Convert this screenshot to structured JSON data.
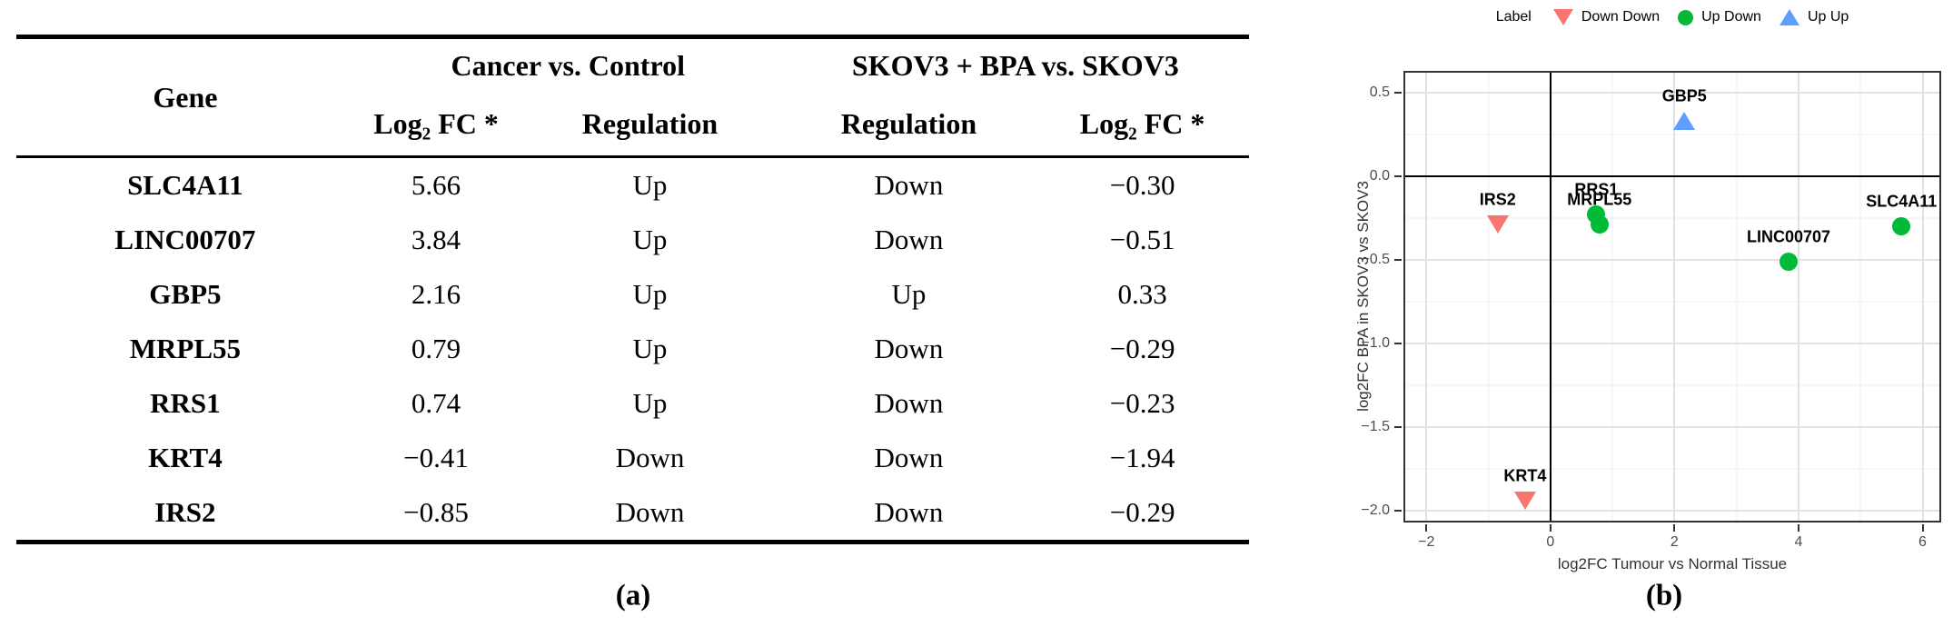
{
  "captions": {
    "a": "(a)",
    "b": "(b)"
  },
  "chart_data": [
    {
      "type": "table",
      "gene_header": "Gene",
      "column_groups": [
        "Cancer vs. Control",
        "SKOV3 + BPA vs. SKOV3"
      ],
      "columns": [
        "Gene",
        "Log₂ FC *",
        "Regulation",
        "Regulation",
        "Log₂ FC *"
      ],
      "rows": [
        {
          "gene": "SLC4A11",
          "cancer_log2fc": "5.66",
          "cancer_regulation": "Up",
          "bpa_regulation": "Down",
          "bpa_log2fc": "−0.30"
        },
        {
          "gene": "LINC00707",
          "cancer_log2fc": "3.84",
          "cancer_regulation": "Up",
          "bpa_regulation": "Down",
          "bpa_log2fc": "−0.51"
        },
        {
          "gene": "GBP5",
          "cancer_log2fc": "2.16",
          "cancer_regulation": "Up",
          "bpa_regulation": "Up",
          "bpa_log2fc": "0.33"
        },
        {
          "gene": "MRPL55",
          "cancer_log2fc": "0.79",
          "cancer_regulation": "Up",
          "bpa_regulation": "Down",
          "bpa_log2fc": "−0.29"
        },
        {
          "gene": "RRS1",
          "cancer_log2fc": "0.74",
          "cancer_regulation": "Up",
          "bpa_regulation": "Down",
          "bpa_log2fc": "−0.23"
        },
        {
          "gene": "KRT4",
          "cancer_log2fc": "−0.41",
          "cancer_regulation": "Down",
          "bpa_regulation": "Down",
          "bpa_log2fc": "−1.94"
        },
        {
          "gene": "IRS2",
          "cancer_log2fc": "−0.85",
          "cancer_regulation": "Down",
          "bpa_regulation": "Down",
          "bpa_log2fc": "−0.29"
        }
      ]
    },
    {
      "type": "scatter",
      "xlabel": "log2FC Tumour vs Normal Tissue",
      "ylabel": "log2FC BPA in SKOV3 vs SKOV3",
      "xlim": [
        -2.37,
        6.3
      ],
      "ylim": [
        -2.07,
        0.63
      ],
      "x_ticks": [
        {
          "v": -2,
          "label": "−2"
        },
        {
          "v": 0,
          "label": "0"
        },
        {
          "v": 2,
          "label": "2"
        },
        {
          "v": 4,
          "label": "4"
        },
        {
          "v": 6,
          "label": "6"
        }
      ],
      "y_ticks": [
        {
          "v": 0.5,
          "label": "0.5"
        },
        {
          "v": 0.0,
          "label": "0.0"
        },
        {
          "v": -0.5,
          "label": "−0.5"
        },
        {
          "v": -1.0,
          "label": "−1.0"
        },
        {
          "v": -1.5,
          "label": "−1.5"
        },
        {
          "v": -2.0,
          "label": "−2.0"
        }
      ],
      "x_minor": [
        -1,
        1,
        3,
        5
      ],
      "y_minor": [
        0.25,
        -0.25,
        -0.75,
        -1.25,
        -1.75
      ],
      "reference_lines": {
        "x": 0,
        "y": 0
      },
      "grid": true,
      "legend_position": "top",
      "legend_title": "Label",
      "series": [
        {
          "name": "Down Down",
          "marker": "triangle-down",
          "color": "#F8766D",
          "points": [
            {
              "label": "IRS2",
              "x": -0.85,
              "y": -0.29
            },
            {
              "label": "KRT4",
              "x": -0.41,
              "y": -1.94
            }
          ]
        },
        {
          "name": "Up Down",
          "marker": "circle",
          "color": "#00BA38",
          "points": [
            {
              "label": "RRS1",
              "x": 0.74,
              "y": -0.23
            },
            {
              "label": "MRPL55",
              "x": 0.79,
              "y": -0.29
            },
            {
              "label": "LINC00707",
              "x": 3.84,
              "y": -0.51
            },
            {
              "label": "SLC4A11",
              "x": 5.66,
              "y": -0.3
            }
          ]
        },
        {
          "name": "Up Up",
          "marker": "triangle-up",
          "color": "#619CFF",
          "points": [
            {
              "label": "GBP5",
              "x": 2.16,
              "y": 0.33
            }
          ]
        }
      ]
    }
  ]
}
